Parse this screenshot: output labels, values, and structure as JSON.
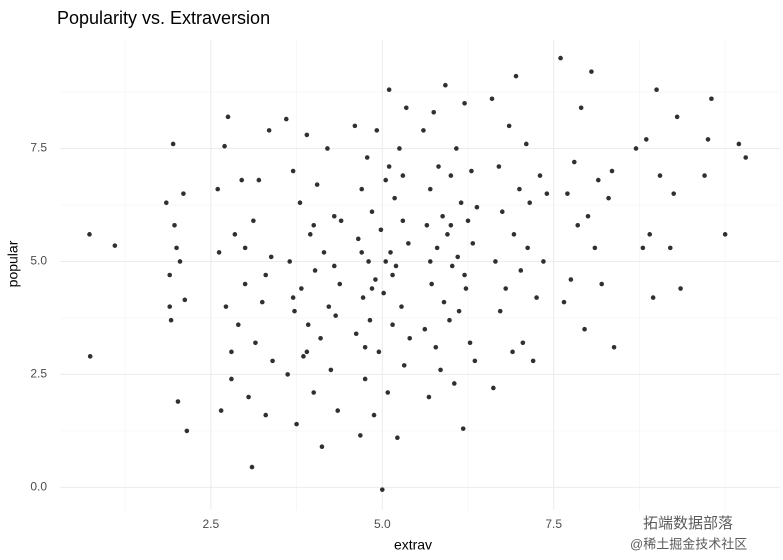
{
  "chart_data": {
    "type": "scatter",
    "title": "Popularity vs. Extraversion",
    "x_label": "extrav",
    "y_label": "popular",
    "xlim": [
      0.3,
      10.8
    ],
    "ylim": [
      -0.5,
      9.9
    ],
    "xticks": [
      2.5,
      {
        "value": 5,
        "label": "5.0"
      },
      7.5
    ],
    "yticks": [
      {
        "value": 0,
        "label": "0.0"
      },
      2.5,
      {
        "value": 5,
        "label": "5.0"
      },
      7.5
    ],
    "x_minor_grid": [
      1.25,
      3.75,
      6.25,
      8.75,
      10
    ],
    "y_minor_grid": [
      1.25,
      3.75,
      6.25,
      8.75
    ],
    "grid": true,
    "color": "#1a1a1a",
    "watermark": [
      "拓端数据部落",
      "@稀土掘金技术社区"
    ],
    "series": [
      {
        "name": "popular",
        "x": [
          0.73,
          0.74,
          1.1,
          1.85,
          1.9,
          1.92,
          1.95,
          1.97,
          2.0,
          2.02,
          2.1,
          2.12,
          2.15,
          1.9,
          2.05,
          2.6,
          2.62,
          2.65,
          2.7,
          2.72,
          2.75,
          2.8,
          2.85,
          2.9,
          2.95,
          3.0,
          3.05,
          3.1,
          3.12,
          3.15,
          3.2,
          3.25,
          3.3,
          3.35,
          3.38,
          3.4,
          3.3,
          2.8,
          3.0,
          3.6,
          3.62,
          3.65,
          3.7,
          3.72,
          3.75,
          3.8,
          3.82,
          3.85,
          3.9,
          3.92,
          3.95,
          4.0,
          4.02,
          4.05,
          4.1,
          4.12,
          4.15,
          4.2,
          4.22,
          4.25,
          4.3,
          4.32,
          4.35,
          4.38,
          4.4,
          3.7,
          3.9,
          4.0,
          4.3,
          4.6,
          4.62,
          4.65,
          4.68,
          4.7,
          4.72,
          4.75,
          4.78,
          4.8,
          4.82,
          4.85,
          4.88,
          4.9,
          4.92,
          4.95,
          4.98,
          5.0,
          5.02,
          5.05,
          5.08,
          5.1,
          5.12,
          5.15,
          5.18,
          5.2,
          5.22,
          5.25,
          5.28,
          5.3,
          5.32,
          5.35,
          5.38,
          5.4,
          4.7,
          4.85,
          5.05,
          5.15,
          5.3,
          4.75,
          5.1,
          5.6,
          5.62,
          5.65,
          5.68,
          5.7,
          5.72,
          5.75,
          5.78,
          5.8,
          5.82,
          5.85,
          5.88,
          5.9,
          5.92,
          5.95,
          5.98,
          6.0,
          6.02,
          6.05,
          6.08,
          6.1,
          6.12,
          6.15,
          6.18,
          6.2,
          6.22,
          6.25,
          6.28,
          6.3,
          6.32,
          6.35,
          6.38,
          5.7,
          6.0,
          6.2,
          6.6,
          6.62,
          6.65,
          6.7,
          6.72,
          6.75,
          6.8,
          6.85,
          6.9,
          6.92,
          6.95,
          7.0,
          7.02,
          7.05,
          7.1,
          7.12,
          7.15,
          7.2,
          7.25,
          7.3,
          7.35,
          7.4,
          7.6,
          7.65,
          7.7,
          7.75,
          7.8,
          7.85,
          7.9,
          7.95,
          8.0,
          8.05,
          8.1,
          8.15,
          8.2,
          8.3,
          8.38,
          8.35,
          8.7,
          8.8,
          8.85,
          8.9,
          8.95,
          9.0,
          9.05,
          9.2,
          9.3,
          9.35,
          9.25,
          9.8,
          9.7,
          10.0,
          10.2,
          10.3,
          9.75
        ],
        "values": [
          5.6,
          2.9,
          5.35,
          6.3,
          4.0,
          3.7,
          7.6,
          5.8,
          5.3,
          1.9,
          6.5,
          4.15,
          1.25,
          4.7,
          5.0,
          6.6,
          5.2,
          1.7,
          7.55,
          4.0,
          8.2,
          2.4,
          5.6,
          3.6,
          6.8,
          4.5,
          2.0,
          0.45,
          5.9,
          3.2,
          6.8,
          4.1,
          1.6,
          7.9,
          5.1,
          2.8,
          4.7,
          3.0,
          5.3,
          8.15,
          2.5,
          5.0,
          7.0,
          3.9,
          1.4,
          6.3,
          4.4,
          2.9,
          7.8,
          3.6,
          5.6,
          2.1,
          4.8,
          6.7,
          3.3,
          0.9,
          5.2,
          7.5,
          4.0,
          2.6,
          6.0,
          3.8,
          1.7,
          4.5,
          5.9,
          4.2,
          3.0,
          5.8,
          4.9,
          8.0,
          3.4,
          5.5,
          1.15,
          6.6,
          4.2,
          2.4,
          7.3,
          5.0,
          3.7,
          6.1,
          1.6,
          4.6,
          7.9,
          3.0,
          5.7,
          -0.05,
          4.3,
          6.8,
          2.1,
          8.8,
          5.2,
          3.6,
          6.4,
          4.9,
          1.1,
          7.5,
          4.0,
          5.9,
          2.7,
          8.4,
          5.4,
          3.3,
          5.2,
          4.4,
          5.0,
          4.7,
          6.9,
          3.1,
          7.1,
          7.9,
          3.5,
          5.8,
          2.0,
          6.6,
          4.5,
          8.3,
          3.1,
          5.3,
          7.1,
          2.6,
          6.0,
          4.1,
          8.9,
          5.6,
          3.7,
          6.9,
          4.9,
          2.3,
          7.5,
          5.1,
          3.9,
          6.3,
          1.3,
          8.5,
          4.4,
          5.9,
          3.2,
          7.0,
          5.4,
          2.8,
          6.2,
          5.0,
          5.8,
          4.7,
          8.6,
          2.2,
          5.0,
          7.1,
          3.9,
          6.1,
          4.4,
          8.0,
          3.0,
          5.6,
          9.1,
          6.6,
          4.8,
          3.2,
          7.6,
          5.3,
          6.3,
          2.8,
          4.2,
          6.9,
          5.0,
          6.5,
          9.5,
          4.1,
          6.5,
          4.6,
          7.2,
          5.8,
          8.4,
          3.5,
          6.0,
          9.2,
          5.3,
          6.8,
          4.5,
          6.4,
          3.1,
          7.0,
          7.5,
          5.3,
          7.7,
          5.6,
          4.2,
          8.8,
          6.9,
          5.3,
          8.2,
          4.4,
          6.5,
          8.6,
          6.9,
          5.6,
          7.6,
          7.3,
          7.7
        ]
      }
    ]
  }
}
